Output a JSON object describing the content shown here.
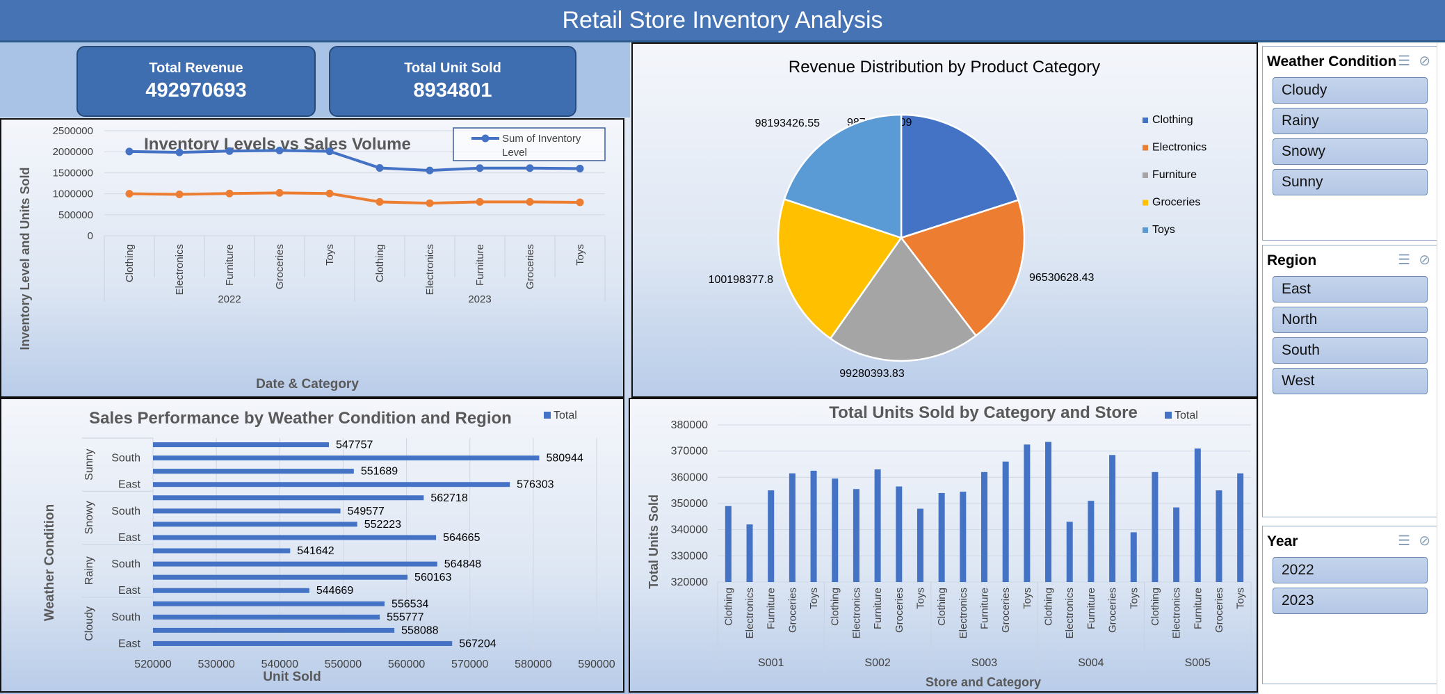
{
  "header": {
    "title": "Retail Store Inventory Analysis"
  },
  "kpis": {
    "revenue": {
      "label": "Total Revenue",
      "value": "492970693"
    },
    "units": {
      "label": "Total Unit Sold",
      "value": "8934801"
    }
  },
  "slicers": {
    "weather": {
      "title": "Weather Condition",
      "items": [
        "Cloudy",
        "Rainy",
        "Snowy",
        "Sunny"
      ]
    },
    "region": {
      "title": "Region",
      "items": [
        "East",
        "North",
        "South",
        "West"
      ]
    },
    "year": {
      "title": "Year",
      "items": [
        "2022",
        "2023"
      ]
    }
  },
  "chart_data": [
    {
      "type": "line",
      "title": "Inventory Levels vs Sales Volume",
      "xlabel": "Date  & Category",
      "ylabel": "Inventory Level and Units Sold",
      "ylim": [
        0,
        2500000
      ],
      "yticks": [
        0,
        500000,
        1000000,
        1500000,
        2000000,
        2500000
      ],
      "groups": [
        {
          "name": "2022",
          "categories": [
            "Clothing",
            "Electronics",
            "Furniture",
            "Groceries",
            "Toys"
          ]
        },
        {
          "name": "2023",
          "categories": [
            "Clothing",
            "Electronics",
            "Furniture",
            "Groceries",
            "Toys"
          ]
        }
      ],
      "series": [
        {
          "name": "Sum of Inventory Level",
          "color": "#4472c4",
          "values": [
            2005000,
            1985000,
            2015000,
            2030000,
            2010000,
            1615000,
            1555000,
            1610000,
            1610000,
            1600000
          ]
        },
        {
          "name": "",
          "color": "#ed7d31",
          "values": [
            1000000,
            985000,
            1005000,
            1020000,
            1005000,
            805000,
            775000,
            805000,
            805000,
            795000
          ]
        }
      ],
      "legend": "top-right",
      "grid": true
    },
    {
      "type": "pie",
      "title": "Revenue Distribution by Product Category",
      "slices": [
        {
          "label": "Clothing",
          "value": 98767866.09,
          "color": "#4472c4"
        },
        {
          "label": "Electronics",
          "value": 96530628.43,
          "color": "#ed7d31"
        },
        {
          "label": "Furniture",
          "value": 99280393.83,
          "color": "#a5a5a5"
        },
        {
          "label": "Groceries",
          "value": 100198377.8,
          "color": "#ffc000"
        },
        {
          "label": "Toys",
          "value": 98193426.55,
          "color": "#5b9bd5"
        }
      ],
      "value_labels": [
        "98767866.09",
        "96530628.43",
        "99280393.83",
        "100198377.8",
        "98193426.55"
      ],
      "legend": "right"
    },
    {
      "type": "bar",
      "orientation": "horizontal",
      "title": "Sales Performance by Weather Condition and Region",
      "xlabel": "Unit Sold",
      "ylabel": "Weather Condition",
      "xlim": [
        520000,
        590000
      ],
      "xticks": [
        520000,
        530000,
        540000,
        550000,
        560000,
        570000,
        580000,
        590000
      ],
      "groups": [
        {
          "name": "Sunny",
          "bars": [
            {
              "label": "",
              "value": 547757
            },
            {
              "label": "South",
              "value": 580944
            },
            {
              "label": "",
              "value": 551689
            },
            {
              "label": "East",
              "value": 576303
            }
          ]
        },
        {
          "name": "Snowy",
          "bars": [
            {
              "label": "",
              "value": 562718
            },
            {
              "label": "South",
              "value": 549577
            },
            {
              "label": "",
              "value": 552223
            },
            {
              "label": "East",
              "value": 564665
            }
          ]
        },
        {
          "name": "Rainy",
          "bars": [
            {
              "label": "",
              "value": 541642
            },
            {
              "label": "South",
              "value": 564848
            },
            {
              "label": "",
              "value": 560163
            },
            {
              "label": "East",
              "value": 544669
            }
          ]
        },
        {
          "name": "Cloudy",
          "bars": [
            {
              "label": "",
              "value": 556534
            },
            {
              "label": "South",
              "value": 555777
            },
            {
              "label": "",
              "value": 558088
            },
            {
              "label": "East",
              "value": 567204
            }
          ]
        }
      ],
      "series_name": "Total",
      "color": "#4472c4",
      "legend": "top-right",
      "grid": true
    },
    {
      "type": "bar",
      "orientation": "vertical",
      "title": "Total Units Sold by Category and Store",
      "xlabel": "Store and Category",
      "ylabel": "Total Units Sold",
      "ylim": [
        320000,
        380000
      ],
      "yticks": [
        320000,
        330000,
        340000,
        350000,
        360000,
        370000,
        380000
      ],
      "groups": [
        {
          "name": "S001",
          "categories": [
            "Clothing",
            "Electronics",
            "Furniture",
            "Groceries",
            "Toys"
          ],
          "values": [
            349000,
            342000,
            355000,
            361500,
            362500
          ]
        },
        {
          "name": "S002",
          "categories": [
            "Clothing",
            "Electronics",
            "Furniture",
            "Groceries",
            "Toys"
          ],
          "values": [
            359500,
            355500,
            363000,
            356500,
            348000
          ]
        },
        {
          "name": "S003",
          "categories": [
            "Clothing",
            "Electronics",
            "Furniture",
            "Groceries",
            "Toys"
          ],
          "values": [
            354000,
            354500,
            362000,
            366000,
            372500
          ]
        },
        {
          "name": "S004",
          "categories": [
            "Clothing",
            "Electronics",
            "Furniture",
            "Groceries",
            "Toys"
          ],
          "values": [
            373500,
            343000,
            351000,
            368500,
            339000
          ]
        },
        {
          "name": "S005",
          "categories": [
            "Clothing",
            "Electronics",
            "Furniture",
            "Groceries",
            "Toys"
          ],
          "values": [
            362000,
            348500,
            371000,
            355000,
            361500
          ]
        }
      ],
      "series_name": "Total",
      "color": "#4472c4",
      "legend": "top-right",
      "grid": true
    }
  ]
}
